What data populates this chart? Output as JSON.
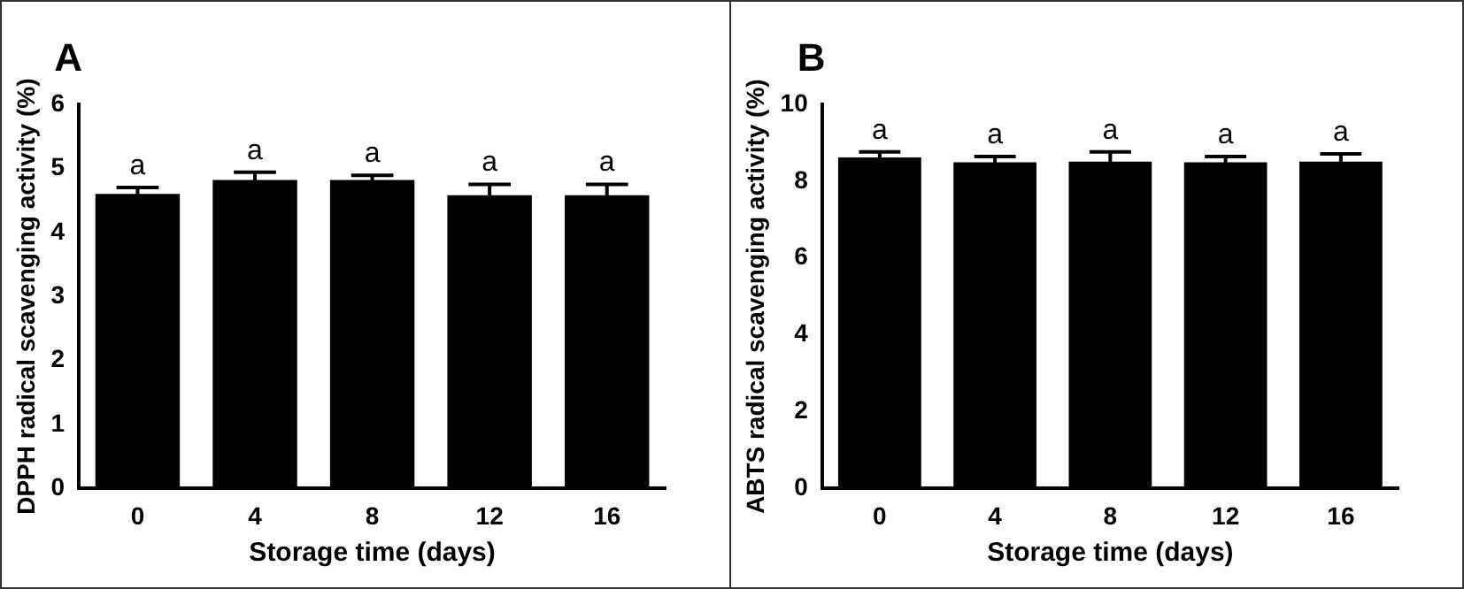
{
  "chart_data": [
    {
      "type": "bar",
      "title": "A",
      "xlabel": "Storage time (days)",
      "ylabel": "DPPH radical scavenging activity (%)",
      "categories": [
        "0",
        "4",
        "8",
        "12",
        "16"
      ],
      "series": [
        {
          "color": "#000000",
          "values": [
            4.6,
            4.82,
            4.82,
            4.58,
            4.58
          ],
          "errors": [
            0.1,
            0.12,
            0.07,
            0.17,
            0.17
          ],
          "value_labels": [
            "a",
            "a",
            "a",
            "a",
            "a"
          ]
        }
      ],
      "ylim": [
        0,
        6
      ],
      "yticks": [
        0,
        1,
        2,
        3,
        4,
        5,
        6
      ],
      "grid": false,
      "legend": false
    },
    {
      "type": "bar",
      "title": "B",
      "xlabel": "Storage time (days)",
      "ylabel": "ABTS radical scavenging activity (%)",
      "categories": [
        "0",
        "4",
        "8",
        "12",
        "16"
      ],
      "series": [
        {
          "color": "#000000",
          "values": [
            8.62,
            8.49,
            8.51,
            8.49,
            8.51
          ],
          "errors": [
            0.14,
            0.15,
            0.25,
            0.15,
            0.2
          ],
          "value_labels": [
            "a",
            "a",
            "a",
            "a",
            "a"
          ]
        }
      ],
      "ylim": [
        0,
        10
      ],
      "yticks": [
        0,
        2,
        4,
        6,
        8,
        10
      ],
      "grid": false,
      "legend": false
    }
  ]
}
